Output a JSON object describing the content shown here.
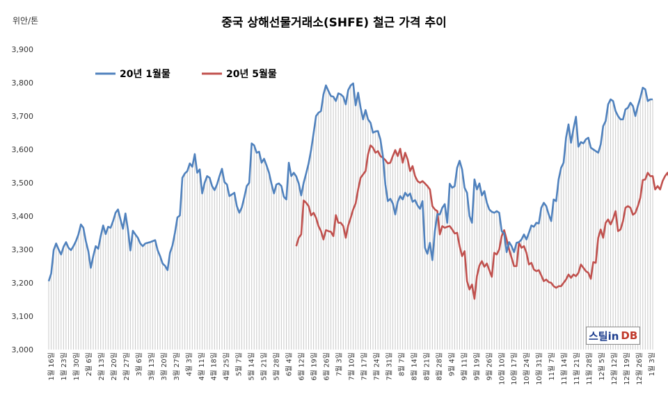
{
  "chart_data": {
    "type": "line",
    "title": "중국 상해선물거래소(SHFE) 철근 가격 추이",
    "ylabel": "위안/톤",
    "ylim": [
      3000,
      3900
    ],
    "yticks": [
      "3,000",
      "3,100",
      "3,200",
      "3,300",
      "3,400",
      "3,500",
      "3,600",
      "3,700",
      "3,800",
      "3,900"
    ],
    "grid": false,
    "legend_position": "top-left",
    "x_tick_labels": [
      "1월 16일",
      "1월 23일",
      "1월 30일",
      "2월 6일",
      "2월 13일",
      "2월 20일",
      "2월 27일",
      "3월 6일",
      "3월 13일",
      "3월 20일",
      "3월 27일",
      "4월 3일",
      "4월 11일",
      "4월 18일",
      "4월 25일",
      "5월 7일",
      "5월 14일",
      "5월 21일",
      "5월 28일",
      "6월 4일",
      "6월 12일",
      "6월 19일",
      "6월 26일",
      "7월 3일",
      "7월 10일",
      "7월 17일",
      "7월 24일",
      "7월 31일",
      "8월 7일",
      "8월 14일",
      "8월 21일",
      "8월 28일",
      "9월 4일",
      "9월 11일",
      "9월 19일",
      "9월 26일",
      "10월 10일",
      "10월 17일",
      "10월 24일",
      "10월 31일",
      "11월 7일",
      "11월 14일",
      "11월 21일",
      "11월 28일",
      "12월 5일",
      "12월 12일",
      "12월 19일",
      "12월 26일",
      "1월 3일"
    ],
    "series": [
      {
        "name": "20년 1월물",
        "color": "#4f81bd",
        "values": [
          3205,
          3228,
          3298,
          3318,
          3300,
          3285,
          3308,
          3322,
          3305,
          3298,
          3310,
          3325,
          3345,
          3375,
          3365,
          3325,
          3295,
          3245,
          3280,
          3310,
          3302,
          3340,
          3372,
          3346,
          3368,
          3365,
          3385,
          3410,
          3420,
          3390,
          3362,
          3408,
          3360,
          3297,
          3356,
          3345,
          3335,
          3318,
          3310,
          3318,
          3320,
          3322,
          3325,
          3328,
          3298,
          3280,
          3258,
          3251,
          3238,
          3290,
          3312,
          3350,
          3396,
          3402,
          3515,
          3528,
          3535,
          3558,
          3548,
          3586,
          3530,
          3540,
          3468,
          3500,
          3520,
          3515,
          3490,
          3478,
          3495,
          3520,
          3542,
          3502,
          3495,
          3460,
          3465,
          3470,
          3430,
          3410,
          3426,
          3456,
          3490,
          3500,
          3618,
          3612,
          3590,
          3593,
          3560,
          3572,
          3552,
          3530,
          3497,
          3468,
          3495,
          3498,
          3490,
          3458,
          3450,
          3560,
          3520,
          3530,
          3519,
          3498,
          3462,
          3500,
          3528,
          3558,
          3598,
          3648,
          3700,
          3710,
          3715,
          3765,
          3792,
          3775,
          3760,
          3758,
          3745,
          3768,
          3765,
          3758,
          3735,
          3778,
          3792,
          3798,
          3732,
          3770,
          3725,
          3690,
          3718,
          3690,
          3680,
          3650,
          3654,
          3655,
          3630,
          3580,
          3495,
          3445,
          3452,
          3438,
          3405,
          3443,
          3460,
          3450,
          3470,
          3460,
          3468,
          3443,
          3448,
          3432,
          3422,
          3445,
          3305,
          3287,
          3320,
          3268,
          3355,
          3406,
          3405,
          3425,
          3436,
          3380,
          3497,
          3485,
          3490,
          3545,
          3566,
          3540,
          3485,
          3470,
          3400,
          3380,
          3510,
          3480,
          3498,
          3462,
          3475,
          3440,
          3420,
          3413,
          3410,
          3415,
          3410,
          3355,
          3348,
          3292,
          3322,
          3310,
          3292,
          3320,
          3322,
          3330,
          3345,
          3330,
          3350,
          3372,
          3368,
          3380,
          3378,
          3425,
          3440,
          3430,
          3405,
          3385,
          3450,
          3445,
          3510,
          3545,
          3560,
          3635,
          3675,
          3620,
          3662,
          3698,
          3608,
          3622,
          3618,
          3630,
          3635,
          3605,
          3600,
          3595,
          3590,
          3615,
          3670,
          3685,
          3735,
          3750,
          3745,
          3715,
          3700,
          3690,
          3690,
          3720,
          3725,
          3740,
          3730,
          3700,
          3730,
          3755,
          3785,
          3780,
          3745,
          3750,
          3750
        ]
      },
      {
        "name": "20년 5월물",
        "color": "#c0504d",
        "start_index": 100,
        "values": [
          3310,
          3335,
          3345,
          3447,
          3440,
          3430,
          3402,
          3410,
          3395,
          3370,
          3355,
          3330,
          3358,
          3355,
          3353,
          3340,
          3403,
          3380,
          3380,
          3370,
          3335,
          3372,
          3395,
          3420,
          3438,
          3480,
          3515,
          3525,
          3535,
          3585,
          3612,
          3605,
          3590,
          3595,
          3580,
          3575,
          3568,
          3558,
          3560,
          3580,
          3598,
          3580,
          3602,
          3560,
          3590,
          3570,
          3535,
          3550,
          3520,
          3505,
          3500,
          3505,
          3498,
          3490,
          3480,
          3430,
          3420,
          3415,
          3345,
          3370,
          3365,
          3368,
          3370,
          3360,
          3348,
          3350,
          3310,
          3280,
          3295,
          3205,
          3180,
          3195,
          3152,
          3220,
          3252,
          3265,
          3248,
          3258,
          3238,
          3218,
          3290,
          3285,
          3300,
          3340,
          3358,
          3330,
          3300,
          3275,
          3250,
          3250,
          3320,
          3305,
          3310,
          3290,
          3255,
          3260,
          3240,
          3235,
          3238,
          3222,
          3205,
          3210,
          3202,
          3200,
          3190,
          3185,
          3190,
          3190,
          3200,
          3210,
          3225,
          3215,
          3225,
          3220,
          3230,
          3255,
          3245,
          3235,
          3230,
          3212,
          3262,
          3260,
          3335,
          3360,
          3335,
          3380,
          3390,
          3375,
          3392,
          3415,
          3355,
          3360,
          3385,
          3425,
          3430,
          3425,
          3404,
          3410,
          3430,
          3455,
          3508,
          3510,
          3530,
          3520,
          3520,
          3480,
          3490,
          3480,
          3505,
          3520,
          3530,
          3510,
          3485,
          3530,
          3545,
          3545,
          3568,
          3555,
          3545,
          3550,
          3560
        ]
      }
    ]
  },
  "legend": {
    "series1_label": "20년 1월물",
    "series2_label": "20년 5월물"
  },
  "logo": {
    "part1": "스틸in",
    "part2": "DB"
  }
}
